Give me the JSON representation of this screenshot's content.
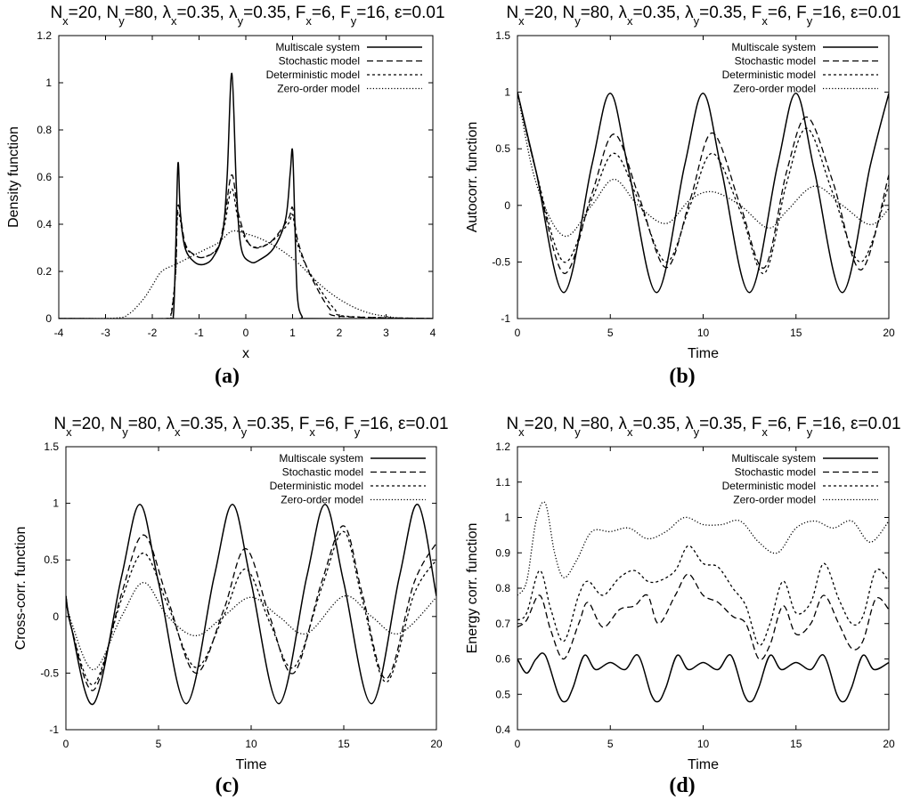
{
  "figure": {
    "panel_labels": [
      "(a)",
      "(b)",
      "(c)",
      "(d)"
    ]
  },
  "chart_data": [
    {
      "type": "line",
      "title": "N_x=20, N_y=80, λ_x=0.35, λ_y=0.35, F_x=6, F_y=16, ε=0.01",
      "xlabel": "x",
      "ylabel": "Density function",
      "xlim": [
        -4,
        4
      ],
      "ylim": [
        0,
        1.2
      ],
      "xticks": [
        -4,
        -3,
        -2,
        -1,
        0,
        1,
        2,
        3,
        4
      ],
      "yticks": [
        0,
        0.2,
        0.4,
        0.6,
        0.8,
        1,
        1.2
      ],
      "xtick_labels": [
        "-4",
        "-3",
        "-2",
        "-1",
        "0",
        "1",
        "2",
        "3",
        "4"
      ],
      "ytick_labels": [
        "0",
        "0.2",
        "0.4",
        "0.6",
        "0.8",
        "1",
        "1.2"
      ],
      "legend_position": "top-right",
      "series": [
        {
          "name": "Multiscale system",
          "style": "solid",
          "x": [
            -4,
            -1.65,
            -1.55,
            -1.5,
            -1.45,
            -1.4,
            -1.3,
            -1.1,
            -0.9,
            -0.7,
            -0.5,
            -0.4,
            -0.3,
            -0.2,
            -0.1,
            0.1,
            0.3,
            0.6,
            0.85,
            0.95,
            1.0,
            1.05,
            1.1,
            1.2,
            1.4,
            4
          ],
          "y": [
            0,
            0,
            0.01,
            0.3,
            0.66,
            0.45,
            0.3,
            0.24,
            0.23,
            0.26,
            0.36,
            0.6,
            1.04,
            0.55,
            0.3,
            0.24,
            0.25,
            0.3,
            0.42,
            0.62,
            0.71,
            0.4,
            0.1,
            0.01,
            0,
            0
          ]
        },
        {
          "name": "Stochastic model",
          "style": "dashed",
          "x": [
            -4,
            -1.7,
            -1.6,
            -1.5,
            -1.45,
            -1.3,
            -1.1,
            -0.9,
            -0.6,
            -0.45,
            -0.3,
            -0.15,
            0.1,
            0.5,
            0.9,
            1.0,
            1.1,
            1.3,
            1.6,
            1.8,
            2.0,
            4
          ],
          "y": [
            0,
            0,
            0.01,
            0.2,
            0.48,
            0.32,
            0.27,
            0.26,
            0.3,
            0.43,
            0.61,
            0.44,
            0.31,
            0.32,
            0.42,
            0.47,
            0.34,
            0.22,
            0.1,
            0.04,
            0.01,
            0
          ]
        },
        {
          "name": "Deterministic model",
          "style": "short-dashed",
          "x": [
            -4,
            -1.7,
            -1.6,
            -1.5,
            -1.45,
            -1.3,
            -1.1,
            -0.9,
            -0.6,
            -0.45,
            -0.3,
            -0.15,
            0.1,
            0.5,
            0.9,
            1.0,
            1.1,
            1.3,
            1.6,
            1.9,
            2.15,
            4
          ],
          "y": [
            0,
            0,
            0.02,
            0.2,
            0.45,
            0.31,
            0.27,
            0.26,
            0.3,
            0.4,
            0.55,
            0.41,
            0.31,
            0.32,
            0.4,
            0.44,
            0.32,
            0.22,
            0.12,
            0.04,
            0.01,
            0
          ]
        },
        {
          "name": "Zero-order model",
          "style": "dotted",
          "x": [
            -4,
            -2.8,
            -2.5,
            -2.2,
            -2.0,
            -1.8,
            -1.5,
            -1.2,
            -0.9,
            -0.6,
            -0.3,
            0,
            0.3,
            0.6,
            0.9,
            1.2,
            1.5,
            1.8,
            2.1,
            2.4,
            2.7,
            3.0,
            3.3,
            4
          ],
          "y": [
            0,
            0.002,
            0.02,
            0.08,
            0.14,
            0.2,
            0.23,
            0.26,
            0.29,
            0.32,
            0.37,
            0.36,
            0.34,
            0.31,
            0.27,
            0.22,
            0.16,
            0.11,
            0.07,
            0.04,
            0.02,
            0.01,
            0.002,
            0
          ]
        }
      ]
    },
    {
      "type": "line",
      "title": "N_x=20, N_y=80, λ_x=0.35, λ_y=0.35, F_x=6, F_y=16, ε=0.01",
      "xlabel": "Time",
      "ylabel": "Autocorr. function",
      "xlim": [
        0,
        20
      ],
      "ylim": [
        -1,
        1.5
      ],
      "xticks": [
        0,
        5,
        10,
        15,
        20
      ],
      "yticks": [
        -1,
        -0.5,
        0,
        0.5,
        1,
        1.5
      ],
      "xtick_labels": [
        "0",
        "5",
        "10",
        "15",
        "20"
      ],
      "ytick_labels": [
        "-1",
        "-0.5",
        "0",
        "0.5",
        "1",
        "1.5"
      ],
      "legend_position": "top-right",
      "series": [
        {
          "name": "Multiscale system",
          "style": "solid",
          "x": [
            0,
            1,
            2.5,
            4,
            5,
            6,
            7.5,
            9,
            10,
            11,
            12.5,
            14,
            15,
            16,
            17.5,
            19,
            20
          ],
          "y": [
            1,
            0.3,
            -0.77,
            0.35,
            0.99,
            0.3,
            -0.77,
            0.35,
            0.99,
            0.3,
            -0.77,
            0.35,
            0.99,
            0.3,
            -0.77,
            0.35,
            0.99
          ]
        },
        {
          "name": "Stochastic model",
          "style": "dashed",
          "x": [
            0,
            1,
            2.5,
            4,
            5.2,
            6.5,
            8,
            9.3,
            10.5,
            12,
            13.3,
            14.5,
            15.6,
            17,
            18.5,
            20
          ],
          "y": [
            1,
            0.3,
            -0.6,
            0.1,
            0.63,
            0.1,
            -0.55,
            0.05,
            0.64,
            0.0,
            -0.55,
            0.3,
            0.78,
            0.2,
            -0.57,
            0.27
          ]
        },
        {
          "name": "Deterministic model",
          "style": "short-dashed",
          "x": [
            0,
            1,
            2.5,
            4,
            5.2,
            6.5,
            8,
            9.3,
            10.5,
            12,
            13.3,
            14.5,
            15.6,
            17,
            18.5,
            20
          ],
          "y": [
            1,
            0.3,
            -0.5,
            0.05,
            0.46,
            0.05,
            -0.5,
            0.0,
            0.46,
            -0.05,
            -0.6,
            0.2,
            0.68,
            0.1,
            -0.5,
            0.18
          ]
        },
        {
          "name": "Zero-order model",
          "style": "dotted",
          "x": [
            0,
            1,
            2.5,
            4,
            5.2,
            6.5,
            8,
            9.3,
            10.5,
            12,
            13.5,
            14.5,
            16,
            17.5,
            19,
            20
          ],
          "y": [
            1,
            0.2,
            -0.27,
            0.0,
            0.23,
            0.0,
            -0.16,
            0.05,
            0.12,
            0.0,
            -0.2,
            -0.05,
            0.17,
            0.0,
            -0.17,
            -0.03
          ]
        }
      ]
    },
    {
      "type": "line",
      "title": "N_x=20, N_y=80, λ_x=0.35, λ_y=0.35, F_x=6, F_y=16, ε=0.01",
      "xlabel": "Time",
      "ylabel": "Cross-corr. function",
      "xlim": [
        0,
        20
      ],
      "ylim": [
        -1,
        1.5
      ],
      "xticks": [
        0,
        5,
        10,
        15,
        20
      ],
      "yticks": [
        -1,
        -0.5,
        0,
        0.5,
        1,
        1.5
      ],
      "xtick_labels": [
        "0",
        "5",
        "10",
        "15",
        "20"
      ],
      "ytick_labels": [
        "-1",
        "-0.5",
        "0",
        "0.5",
        "1",
        "1.5"
      ],
      "legend_position": "top-right",
      "series": [
        {
          "name": "Multiscale system",
          "style": "solid",
          "x": [
            0,
            0.3,
            1.5,
            3,
            4,
            5,
            6.5,
            8,
            9,
            10,
            11.5,
            13,
            14,
            15,
            16.5,
            18,
            19,
            20
          ],
          "y": [
            0.18,
            -0.1,
            -0.77,
            0.35,
            0.99,
            0.3,
            -0.77,
            0.35,
            0.99,
            0.3,
            -0.77,
            0.35,
            0.99,
            0.3,
            -0.77,
            0.35,
            0.99,
            0.18
          ]
        },
        {
          "name": "Stochastic model",
          "style": "dashed",
          "x": [
            0,
            0.3,
            1.5,
            3,
            4.2,
            5.5,
            7,
            8.5,
            9.7,
            11,
            12.3,
            13.8,
            15,
            16,
            17.3,
            18.8,
            20
          ],
          "y": [
            0.18,
            -0.1,
            -0.65,
            0.2,
            0.72,
            0.15,
            -0.5,
            0.05,
            0.6,
            0.0,
            -0.5,
            0.3,
            0.8,
            0.2,
            -0.55,
            0.3,
            0.65
          ]
        },
        {
          "name": "Deterministic model",
          "style": "short-dashed",
          "x": [
            0,
            0.3,
            1.5,
            3,
            4.2,
            5.5,
            7,
            8.5,
            9.7,
            11,
            12.3,
            13.8,
            15,
            16,
            17.3,
            18.8,
            20
          ],
          "y": [
            0.18,
            -0.1,
            -0.6,
            0.15,
            0.56,
            0.1,
            -0.45,
            0.0,
            0.42,
            -0.05,
            -0.45,
            0.25,
            0.75,
            0.15,
            -0.58,
            0.2,
            0.5
          ]
        },
        {
          "name": "Zero-order model",
          "style": "dotted",
          "x": [
            0,
            0.3,
            1.5,
            3,
            4.2,
            5.5,
            7,
            8.5,
            10,
            11.5,
            13,
            15,
            16.5,
            18,
            20
          ],
          "y": [
            0.18,
            -0.05,
            -0.47,
            0.0,
            0.3,
            0.0,
            -0.17,
            0.0,
            0.17,
            0.0,
            -0.15,
            0.18,
            0.0,
            -0.15,
            0.17
          ]
        }
      ]
    },
    {
      "type": "line",
      "title": "N_x=20, N_y=80, λ_x=0.35, λ_y=0.35, F_x=6, F_y=16, ε=0.01",
      "xlabel": "Time",
      "ylabel": "Energy corr. function",
      "xlim": [
        0,
        20
      ],
      "ylim": [
        0.4,
        1.2
      ],
      "xticks": [
        0,
        5,
        10,
        15,
        20
      ],
      "yticks": [
        0.4,
        0.5,
        0.6,
        0.7,
        0.8,
        0.9,
        1,
        1.1,
        1.2
      ],
      "xtick_labels": [
        "0",
        "5",
        "10",
        "15",
        "20"
      ],
      "ytick_labels": [
        "0.4",
        "0.5",
        "0.6",
        "0.7",
        "0.8",
        "0.9",
        "1",
        "1.1",
        "1.2"
      ],
      "legend_position": "top-right",
      "series": [
        {
          "name": "Multiscale system",
          "style": "solid",
          "x": [
            0,
            0.5,
            1.0,
            1.5,
            2.2,
            2.6,
            3.0,
            3.6,
            4.2,
            5.0,
            5.8,
            6.5,
            7.2,
            7.6,
            8.0,
            8.6,
            9.2,
            10.0,
            10.8,
            11.5,
            12.2,
            12.6,
            13.0,
            13.6,
            14.2,
            15.0,
            15.8,
            16.5,
            17.2,
            17.6,
            18.0,
            18.6,
            19.2,
            20
          ],
          "y": [
            0.6,
            0.56,
            0.6,
            0.61,
            0.5,
            0.48,
            0.52,
            0.61,
            0.57,
            0.59,
            0.57,
            0.61,
            0.5,
            0.48,
            0.52,
            0.61,
            0.57,
            0.59,
            0.57,
            0.61,
            0.5,
            0.48,
            0.52,
            0.61,
            0.57,
            0.59,
            0.57,
            0.61,
            0.5,
            0.48,
            0.52,
            0.61,
            0.57,
            0.59
          ]
        },
        {
          "name": "Stochastic model",
          "style": "dashed",
          "x": [
            0,
            0.5,
            1.2,
            1.8,
            2.5,
            3.3,
            3.8,
            4.6,
            5.5,
            6.3,
            7.0,
            7.6,
            8.5,
            9.2,
            10.0,
            10.8,
            11.6,
            12.3,
            13.0,
            13.6,
            14.3,
            15.0,
            15.8,
            16.5,
            17.3,
            18.0,
            18.6,
            19.3,
            20
          ],
          "y": [
            0.69,
            0.71,
            0.78,
            0.68,
            0.6,
            0.7,
            0.76,
            0.69,
            0.74,
            0.75,
            0.78,
            0.7,
            0.78,
            0.84,
            0.78,
            0.76,
            0.72,
            0.7,
            0.6,
            0.64,
            0.75,
            0.67,
            0.7,
            0.78,
            0.7,
            0.63,
            0.65,
            0.77,
            0.74
          ]
        },
        {
          "name": "Deterministic model",
          "style": "short-dashed",
          "x": [
            0,
            0.5,
            1.2,
            1.8,
            2.5,
            3.3,
            3.8,
            4.6,
            5.5,
            6.3,
            7.0,
            7.6,
            8.5,
            9.2,
            10.0,
            10.8,
            11.6,
            12.3,
            13.0,
            13.6,
            14.3,
            15.0,
            15.8,
            16.5,
            17.3,
            18.0,
            18.6,
            19.3,
            20
          ],
          "y": [
            0.71,
            0.73,
            0.85,
            0.74,
            0.65,
            0.78,
            0.82,
            0.78,
            0.83,
            0.85,
            0.82,
            0.82,
            0.85,
            0.92,
            0.87,
            0.86,
            0.8,
            0.75,
            0.64,
            0.7,
            0.82,
            0.73,
            0.76,
            0.87,
            0.77,
            0.7,
            0.72,
            0.85,
            0.82
          ]
        },
        {
          "name": "Zero-order model",
          "style": "dotted",
          "x": [
            0,
            0.5,
            1.0,
            1.5,
            2.0,
            2.5,
            3.2,
            4.0,
            5.0,
            6.0,
            7.0,
            8.0,
            9.0,
            10.0,
            11.0,
            12.0,
            13.0,
            14.0,
            15.0,
            16.0,
            17.0,
            18.0,
            19.0,
            20
          ],
          "y": [
            0.78,
            0.82,
            0.99,
            1.04,
            0.9,
            0.83,
            0.88,
            0.96,
            0.96,
            0.97,
            0.94,
            0.96,
            1.0,
            0.98,
            0.98,
            0.99,
            0.93,
            0.9,
            0.97,
            0.99,
            0.97,
            0.99,
            0.93,
            0.99
          ]
        }
      ]
    }
  ]
}
